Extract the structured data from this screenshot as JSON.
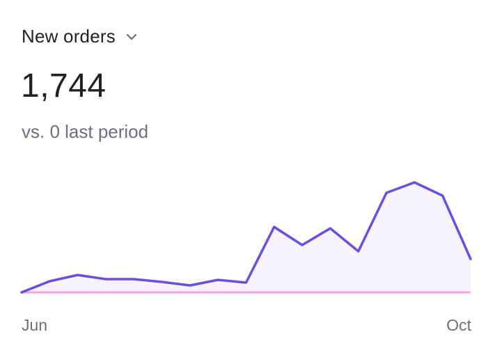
{
  "metric": {
    "label": "New orders",
    "dropdown_icon": "chevron-down-icon"
  },
  "value": "1,744",
  "comparison": "vs. 0 last period",
  "colors": {
    "line": "#6b4de6",
    "area": "#f7f3fd",
    "baseline": "#f2a7e3",
    "text_primary": "#1f2124",
    "text_secondary": "#6b6f80"
  },
  "chart_data": {
    "type": "area",
    "x_start_label": "Jun",
    "x_end_label": "Oct",
    "series": [
      {
        "name": "",
        "values": [
          0,
          16,
          25,
          19,
          19,
          15,
          10,
          18,
          14,
          94,
          68,
          92,
          59,
          143,
          158,
          139,
          48
        ]
      }
    ],
    "comparison_series": [
      0,
      0,
      0,
      0,
      0,
      0,
      0,
      0,
      0,
      0,
      0,
      0,
      0,
      0,
      0,
      0,
      0
    ],
    "ylim": [
      0,
      165
    ],
    "grid": false,
    "legend": "none"
  }
}
